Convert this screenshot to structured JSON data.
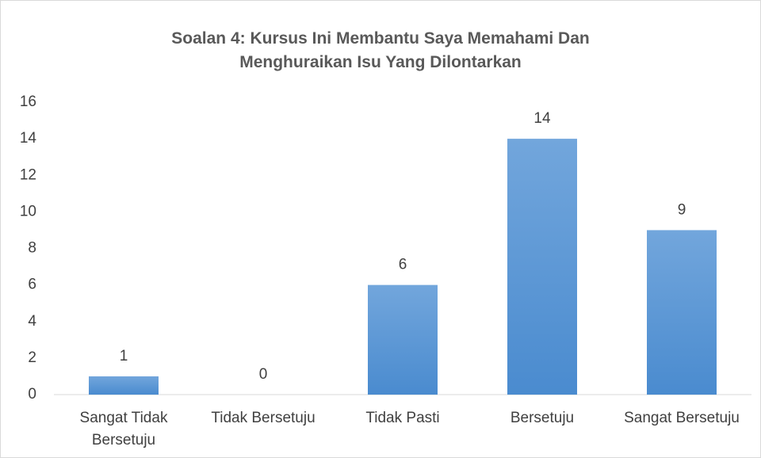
{
  "chart_data": {
    "type": "bar",
    "title": "Soalan 4: Kursus Ini Membantu Saya Memahami Dan Menghuraikan Isu Yang Dilontarkan",
    "categories": [
      "Sangat Tidak Bersetuju",
      "Tidak Bersetuju",
      "Tidak Pasti",
      "Bersetuju",
      "Sangat Bersetuju"
    ],
    "values": [
      1,
      0,
      6,
      14,
      9
    ],
    "color": "#5b9bd5",
    "ylim": [
      0,
      16
    ],
    "yticks": [
      0,
      2,
      4,
      6,
      8,
      10,
      12,
      14,
      16
    ],
    "grid": false
  }
}
